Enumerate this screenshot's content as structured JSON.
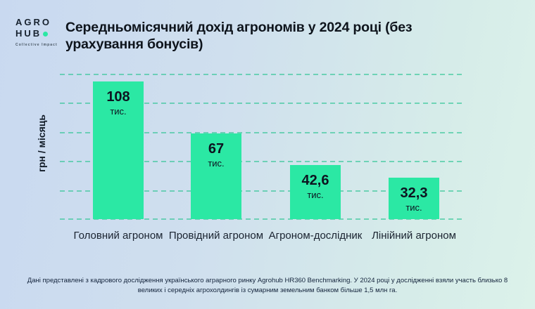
{
  "brand": {
    "line1": "AGRO",
    "line2": "HUB",
    "tagline": "Collective Impact",
    "dot_color": "#2be8a4"
  },
  "header": {
    "title": "Середньомісячний дохід агрономів у 2024 році (без урахування бонусів)"
  },
  "chart_data": {
    "type": "bar",
    "title": "Середньомісячний дохід агрономів у 2024 році (без урахування бонусів)",
    "ylabel": "грн / місяць",
    "xlabel": "",
    "categories": [
      "Головний агроном",
      "Провідний агроном",
      "Агроном-дослідник",
      "Лінійний агроном"
    ],
    "values": [
      108,
      67,
      42.6,
      32.3
    ],
    "value_labels": [
      "108",
      "67",
      "42,6",
      "32,3"
    ],
    "value_unit": "тис.",
    "ylim": [
      0,
      114
    ],
    "grid": "horizontal dashed, 6 lines, no tick labels",
    "legend": "none",
    "bar_color": "#2be8a4"
  },
  "footer": {
    "text": "Дані представлені з кадрового дослідження українського аграрного ринку Agrohub HR360 Benchmarking. У 2024 році у дослідженні взяли участь близько 8 великих і середніх агрохолдингів із сумарним земельним банком більше 1,5 млн га."
  }
}
